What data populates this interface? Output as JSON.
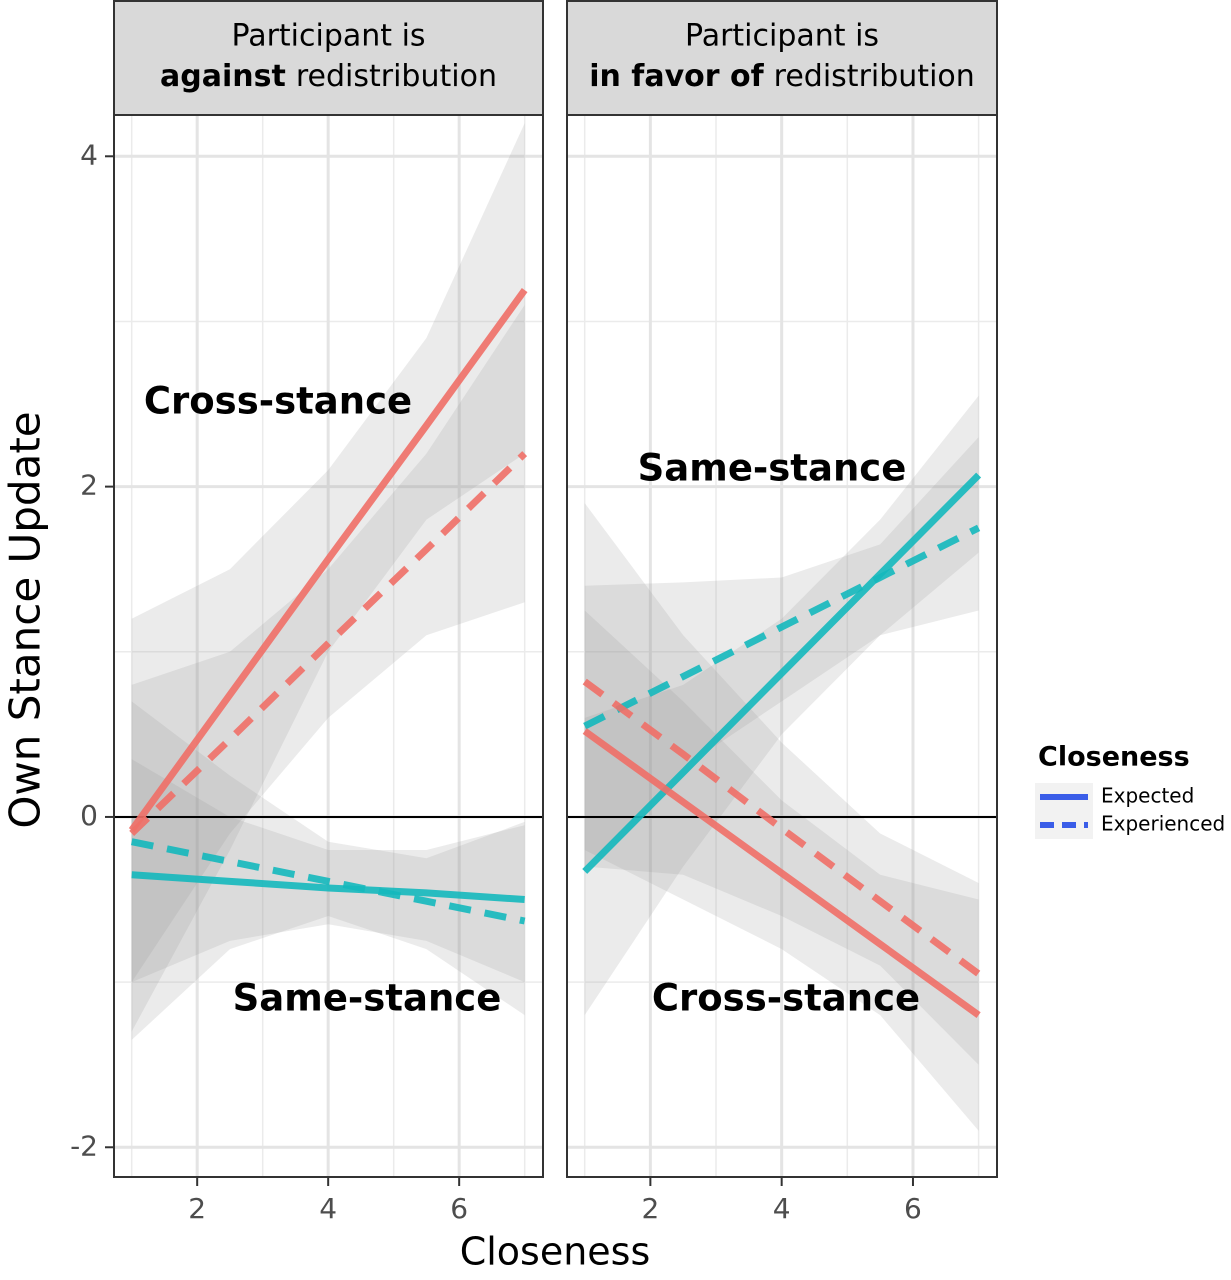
{
  "chart_data": [
    {
      "type": "line",
      "strip": {
        "line1": "Participant is",
        "bold": "against",
        "rest": "redistribution"
      },
      "xlabel": "Closeness",
      "ylabel": "Own Stance Update",
      "x": [
        1,
        2.5,
        4,
        5.5,
        7
      ],
      "xlim": [
        0.73,
        7.28
      ],
      "ylim": [
        -2.18,
        4.25
      ],
      "xticks": [
        2,
        4,
        6
      ],
      "yticks": [
        -2,
        0,
        2,
        4
      ],
      "xminor": [
        1,
        3,
        5,
        7
      ],
      "yminor": [
        -1,
        1,
        3
      ],
      "hline": 0,
      "grid": true,
      "annotations": [
        "Cross-stance",
        "Same-stance"
      ],
      "series": [
        {
          "name": "Expected",
          "color": "#ef6f67",
          "dashed": false,
          "values": [
            -0.08,
            0.74,
            1.56,
            2.37,
            3.19
          ],
          "band_lower": [
            -1.3,
            -0.2,
            1.0,
            1.8,
            2.2
          ],
          "band_upper": [
            1.2,
            1.5,
            2.1,
            2.9,
            4.2
          ]
        },
        {
          "name": "Experienced",
          "color": "#ef6f67",
          "dashed": true,
          "values": [
            -0.1,
            0.47,
            1.05,
            1.62,
            2.2
          ],
          "band_lower": [
            -1.0,
            -0.1,
            0.6,
            1.1,
            1.3
          ],
          "band_upper": [
            0.8,
            1.0,
            1.5,
            2.2,
            3.1
          ]
        },
        {
          "name": "Expected",
          "color": "#14b8bd",
          "dashed": false,
          "values": [
            -0.35,
            -0.39,
            -0.43,
            -0.46,
            -0.5
          ],
          "band_lower": [
            -1.0,
            -0.75,
            -0.65,
            -0.75,
            -1.0
          ],
          "band_upper": [
            0.35,
            0.0,
            -0.2,
            -0.2,
            -0.05
          ]
        },
        {
          "name": "Experienced",
          "color": "#14b8bd",
          "dashed": true,
          "values": [
            -0.15,
            -0.27,
            -0.39,
            -0.51,
            -0.63
          ],
          "band_lower": [
            -1.35,
            -0.8,
            -0.6,
            -0.8,
            -1.2
          ],
          "band_upper": [
            0.7,
            0.25,
            -0.15,
            -0.25,
            -0.03
          ]
        }
      ]
    },
    {
      "type": "line",
      "strip": {
        "line1": "Participant is",
        "bold": "in favor of",
        "rest": "redistribution"
      },
      "x": [
        1,
        2.5,
        4,
        5.5,
        7
      ],
      "xlim": [
        0.73,
        7.28
      ],
      "ylim": [
        -2.18,
        4.25
      ],
      "xticks": [
        2,
        4,
        6
      ],
      "yticks": [
        -2,
        0,
        2,
        4
      ],
      "xminor": [
        1,
        3,
        5,
        7
      ],
      "yminor": [
        -1,
        1,
        3
      ],
      "hline": 0,
      "grid": true,
      "annotations": [
        "Same-stance",
        "Cross-stance"
      ],
      "legend": {
        "title": "Closeness",
        "color": "#3a5de8",
        "position": "right"
      },
      "series": [
        {
          "name": "Expected",
          "color": "#14b8bd",
          "dashed": false,
          "values": [
            -0.33,
            0.27,
            0.87,
            1.47,
            2.07
          ],
          "band_lower": [
            -1.2,
            -0.3,
            0.5,
            1.1,
            1.6
          ],
          "band_upper": [
            0.6,
            0.8,
            1.2,
            1.8,
            2.55
          ]
        },
        {
          "name": "Experienced",
          "color": "#14b8bd",
          "dashed": true,
          "values": [
            0.55,
            0.85,
            1.15,
            1.45,
            1.75
          ],
          "band_lower": [
            -0.3,
            0.3,
            0.7,
            1.1,
            1.25
          ],
          "band_upper": [
            1.4,
            1.42,
            1.45,
            1.65,
            2.3
          ]
        },
        {
          "name": "Expected",
          "color": "#ef6f67",
          "dashed": false,
          "values": [
            0.52,
            0.09,
            -0.34,
            -0.77,
            -1.2
          ],
          "band_lower": [
            -0.2,
            -0.5,
            -0.8,
            -1.2,
            -1.9
          ],
          "band_upper": [
            1.25,
            0.7,
            0.1,
            -0.35,
            -0.5
          ]
        },
        {
          "name": "Experienced",
          "color": "#ef6f67",
          "dashed": true,
          "values": [
            0.82,
            0.38,
            -0.07,
            -0.51,
            -0.95
          ],
          "band_lower": [
            -0.3,
            -0.35,
            -0.6,
            -0.9,
            -1.5
          ],
          "band_upper": [
            1.9,
            1.1,
            0.45,
            -0.1,
            -0.4
          ]
        }
      ]
    }
  ]
}
